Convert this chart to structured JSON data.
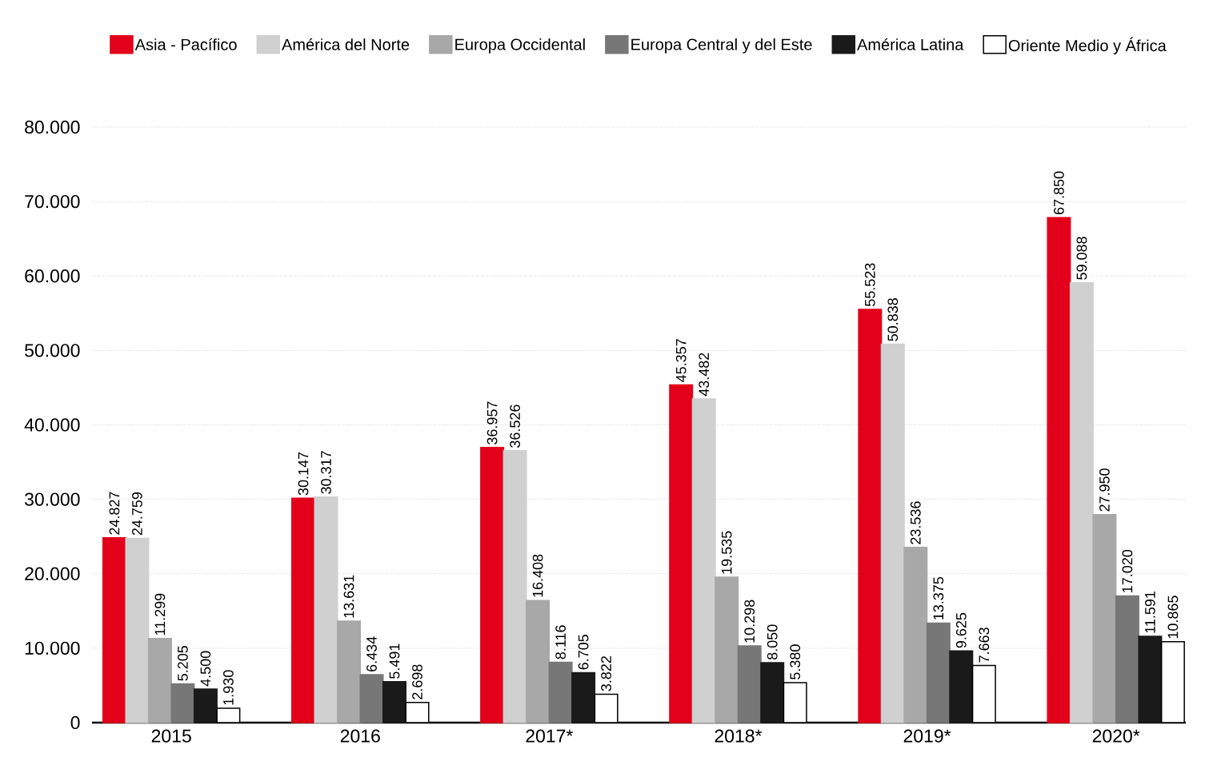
{
  "chart_data": {
    "type": "bar",
    "categories": [
      "2015",
      "2016",
      "2017*",
      "2018*",
      "2019*",
      "2020*"
    ],
    "series": [
      {
        "name": "Asia - Pacífico",
        "color": "#e2001a",
        "values": [
          24827,
          30147,
          36957,
          45357,
          55523,
          67850
        ],
        "value_labels": [
          "24.827",
          "30.147",
          "36.957",
          "45.357",
          "55.523",
          "67.850"
        ]
      },
      {
        "name": "América del Norte",
        "color": "#d0d0d0",
        "values": [
          24759,
          30317,
          36526,
          43482,
          50838,
          59088
        ],
        "value_labels": [
          "24.759",
          "30.317",
          "36.526",
          "43.482",
          "50.838",
          "59.088"
        ]
      },
      {
        "name": "Europa Occidental",
        "color": "#a8a8a8",
        "values": [
          11299,
          13631,
          16408,
          19535,
          23536,
          27950
        ],
        "value_labels": [
          "11.299",
          "13.631",
          "16.408",
          "19.535",
          "23.536",
          "27.950"
        ]
      },
      {
        "name": "Europa Central y del Este",
        "color": "#777777",
        "values": [
          5205,
          6434,
          8116,
          10298,
          13375,
          17020
        ],
        "value_labels": [
          "5.205",
          "6.434",
          "8.116",
          "10.298",
          "13.375",
          "17.020"
        ]
      },
      {
        "name": "América Latina",
        "color": "#1a1a1a",
        "values": [
          4500,
          5491,
          6705,
          8050,
          9625,
          11591
        ],
        "value_labels": [
          "4.500",
          "5.491",
          "6.705",
          "8.050",
          "9.625",
          "11.591"
        ]
      },
      {
        "name": "Oriente Medio y África",
        "color": "#ffffff",
        "values": [
          1930,
          2698,
          3822,
          5380,
          7663,
          10865
        ],
        "value_labels": [
          "1.930",
          "2.698",
          "3.822",
          "5.380",
          "7.663",
          "10.865"
        ]
      }
    ],
    "ylim": [
      0,
      80000
    ],
    "yticks": [
      {
        "value": 0,
        "label": "0"
      },
      {
        "value": 10000,
        "label": "10.000"
      },
      {
        "value": 20000,
        "label": "20.000"
      },
      {
        "value": 30000,
        "label": "30.000"
      },
      {
        "value": 40000,
        "label": "40.000"
      },
      {
        "value": 50000,
        "label": "50.000"
      },
      {
        "value": 60000,
        "label": "60.000"
      },
      {
        "value": 70000,
        "label": "70.000"
      },
      {
        "value": 80000,
        "label": "80.000"
      }
    ],
    "grid": "y",
    "legend": "top"
  }
}
